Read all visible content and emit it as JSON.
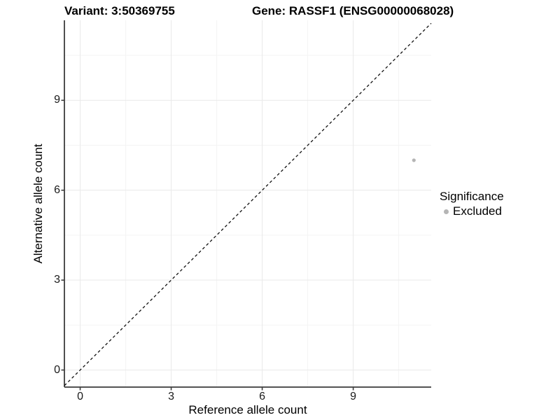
{
  "chart_data": {
    "type": "scatter",
    "title_left": "Variant: 3:50369755",
    "title_right": "Gene: RASSF1 (ENSG00000068028)",
    "xlabel": "Reference allele count",
    "ylabel": "Alternative allele count",
    "x_ticks": [
      0,
      3,
      6,
      9
    ],
    "y_ticks": [
      0,
      3,
      6,
      9
    ],
    "x_minor_ticks": [
      1.5,
      4.5,
      7.5,
      10.5
    ],
    "y_minor_ticks": [
      1.5,
      4.5,
      7.5,
      10.5
    ],
    "xlim": [
      -0.52,
      11.57
    ],
    "ylim": [
      -0.57,
      11.67
    ],
    "grid": "major and minor gridlines, light gray on white",
    "identity_line": {
      "type": "y=x",
      "style": "dashed",
      "color": "#111111"
    },
    "points": [
      {
        "x": 11,
        "y": 7,
        "significance": "Excluded"
      }
    ],
    "legend": {
      "title": "Significance",
      "position": "right",
      "items": [
        {
          "label": "Excluded",
          "color": "#b5b5b5"
        }
      ]
    },
    "colors": {
      "point_excluded": "#b5b5b5",
      "axis_line": "#3c3c3c",
      "major_grid": "#e9e9e9",
      "minor_grid": "#f4f4f4",
      "background": "#ffffff",
      "text": "#000000"
    }
  }
}
